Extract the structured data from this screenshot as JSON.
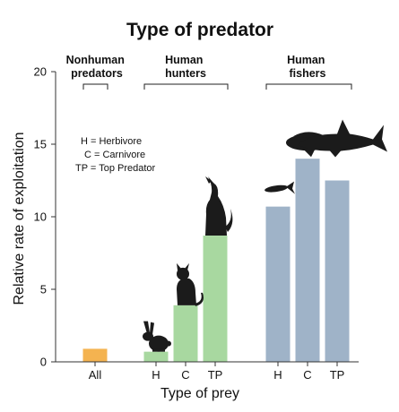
{
  "chart_data": {
    "type": "bar",
    "title": "Type of predator",
    "xlabel": "Type of prey",
    "ylabel": "Relative rate of exploitation",
    "ylim": [
      0,
      20
    ],
    "yticks": [
      0,
      5,
      10,
      15,
      20
    ],
    "grid": false,
    "groups": [
      {
        "label": "Nonhuman predators",
        "label_lines": [
          "Nonhuman",
          "predators"
        ]
      },
      {
        "label": "Human hunters",
        "label_lines": [
          "Human",
          "hunters"
        ]
      },
      {
        "label": "Human fishers",
        "label_lines": [
          "Human",
          "fishers"
        ]
      }
    ],
    "bars": [
      {
        "category": "All",
        "group": "Nonhuman predators",
        "value": 0.9,
        "color": "#f4b350",
        "icon": ""
      },
      {
        "category": "H",
        "group": "Human hunters",
        "value": 0.7,
        "color": "#a8d8a0",
        "icon": "rabbit-icon"
      },
      {
        "category": "C",
        "group": "Human hunters",
        "value": 3.9,
        "color": "#a8d8a0",
        "icon": "cat-icon"
      },
      {
        "category": "TP",
        "group": "Human hunters",
        "value": 8.7,
        "color": "#a8d8a0",
        "icon": "wolf-icon"
      },
      {
        "category": "H",
        "group": "Human fishers",
        "value": 10.7,
        "color": "#9fb3c8",
        "icon": "small-fish-icon"
      },
      {
        "category": "C",
        "group": "Human fishers",
        "value": 14.0,
        "color": "#9fb3c8",
        "icon": "grouper-icon"
      },
      {
        "category": "TP",
        "group": "Human fishers",
        "value": 12.5,
        "color": "#9fb3c8",
        "icon": "shark-icon"
      }
    ],
    "legend_lines": [
      "H = Herbivore",
      "C = Carnivore",
      "TP = Top Predator"
    ],
    "legend_placement": "top-left"
  }
}
